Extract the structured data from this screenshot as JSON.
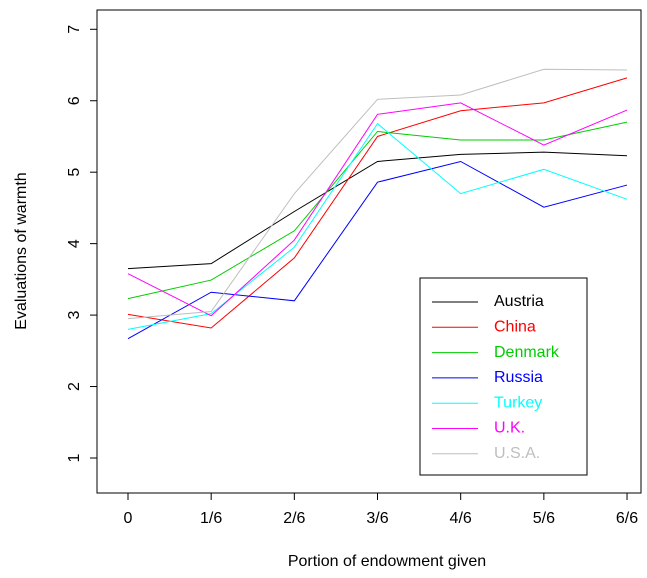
{
  "chart_data": {
    "type": "line",
    "x_label": "Portion of endowment given",
    "y_label": "Evaluations of warmth",
    "categories": [
      "0",
      "1/6",
      "2/6",
      "3/6",
      "4/6",
      "5/6",
      "6/6"
    ],
    "series": [
      {
        "name": "Austria",
        "color": "#000000",
        "values": [
          3.65,
          3.72,
          4.45,
          5.15,
          5.25,
          5.28,
          5.23
        ]
      },
      {
        "name": "China",
        "color": "#ff0000",
        "values": [
          3.01,
          2.82,
          3.8,
          5.5,
          5.86,
          5.97,
          6.32
        ]
      },
      {
        "name": "Denmark",
        "color": "#00cd00",
        "values": [
          3.23,
          3.49,
          4.18,
          5.57,
          5.45,
          5.45,
          5.7
        ]
      },
      {
        "name": "Russia",
        "color": "#0000ff",
        "values": [
          2.67,
          3.32,
          3.2,
          4.86,
          5.15,
          4.51,
          4.82
        ]
      },
      {
        "name": "Turkey",
        "color": "#00ffff",
        "values": [
          2.8,
          3.02,
          3.95,
          5.68,
          4.7,
          5.04,
          4.62
        ]
      },
      {
        "name": "U.K.",
        "color": "#ff00ff",
        "values": [
          3.58,
          2.99,
          4.05,
          5.81,
          5.97,
          5.38,
          5.87
        ]
      },
      {
        "name": "U.S.A.",
        "color": "#bebebe",
        "values": [
          2.95,
          3.05,
          4.7,
          6.02,
          6.08,
          6.44,
          6.43
        ]
      }
    ],
    "ylim": [
      0.51,
      7.27
    ],
    "yticks": [
      1,
      2,
      3,
      4,
      5,
      6,
      7
    ],
    "legend": "bottom-right"
  }
}
